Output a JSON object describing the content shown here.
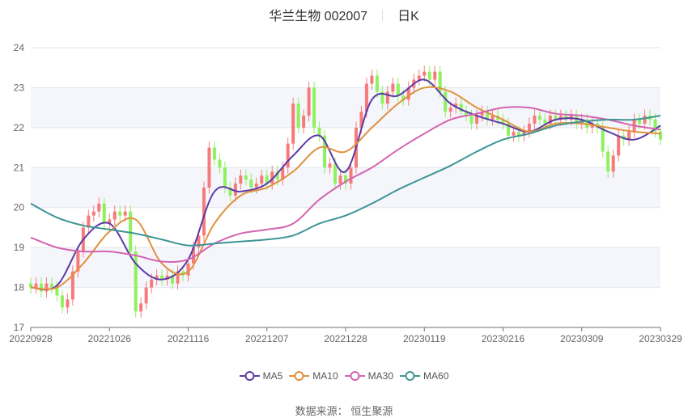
{
  "title": {
    "name": "华兰生物 002007",
    "period": "日K"
  },
  "source": {
    "label": "数据来源：",
    "value": "恒生聚源"
  },
  "colors": {
    "up": "#f77a7a",
    "down": "#8df25e",
    "MA5": "#5b3ba6",
    "MA10": "#e0913f",
    "MA30": "#d464b0",
    "MA60": "#3f9494",
    "band": "#f4f6fb",
    "grid": "#e3e6ee"
  },
  "chart_data": {
    "type": "candlestick",
    "ylim": [
      17,
      24
    ],
    "yticks": [
      17,
      18,
      19,
      20,
      21,
      22,
      23,
      24
    ],
    "xticks": [
      {
        "label": "20220928",
        "day": 0
      },
      {
        "label": "20221026",
        "day": 15
      },
      {
        "label": "20221116",
        "day": 30
      },
      {
        "label": "20221207",
        "day": 45
      },
      {
        "label": "20221228",
        "day": 60
      },
      {
        "label": "20230119",
        "day": 75
      },
      {
        "label": "20230216",
        "day": 90
      },
      {
        "label": "20230309",
        "day": 105
      },
      {
        "label": "20230329",
        "day": 120
      }
    ],
    "open": [
      18.1,
      18.0,
      18.1,
      17.9,
      18.1,
      18.0,
      17.8,
      17.5,
      17.7,
      18.4,
      18.9,
      19.5,
      19.8,
      19.9,
      20.1,
      19.6,
      19.7,
      19.9,
      19.8,
      19.9,
      18.9,
      17.4,
      17.6,
      18.0,
      18.2,
      18.3,
      18.2,
      18.3,
      18.1,
      18.4,
      18.3,
      18.6,
      19.0,
      19.3,
      20.5,
      21.5,
      21.2,
      21.0,
      20.5,
      20.3,
      20.6,
      20.8,
      20.7,
      20.5,
      20.6,
      20.8,
      20.6,
      20.9,
      20.7,
      21.0,
      21.6,
      22.6,
      22.0,
      22.3,
      23.0,
      22.0,
      21.8,
      21.0,
      21.1,
      20.6,
      20.8,
      20.6,
      21.0,
      22.0,
      22.4,
      23.1,
      23.3,
      22.9,
      22.6,
      22.9,
      23.1,
      22.8,
      22.7,
      23.0,
      23.2,
      23.3,
      23.4,
      23.2,
      23.4,
      22.9,
      22.4,
      22.5,
      22.6,
      22.4,
      22.3,
      22.1,
      22.3,
      22.4,
      22.2,
      22.3,
      22.2,
      22.1,
      21.8,
      21.9,
      21.8,
      21.9,
      22.1,
      22.3,
      22.2,
      22.1,
      22.3,
      22.2,
      22.3,
      22.2,
      22.3,
      22.1,
      22.2,
      22.0,
      22.1,
      22.0,
      21.4,
      20.9,
      21.3,
      21.8,
      21.7,
      21.9,
      22.2,
      22.1,
      22.3,
      22.2,
      21.9
    ],
    "close": [
      18.0,
      18.1,
      17.9,
      18.1,
      18.0,
      17.8,
      17.5,
      17.7,
      18.4,
      18.9,
      19.5,
      19.8,
      19.9,
      20.1,
      19.6,
      19.7,
      19.9,
      19.8,
      19.9,
      18.9,
      17.4,
      17.6,
      18.0,
      18.2,
      18.3,
      18.2,
      18.3,
      18.1,
      18.4,
      18.3,
      18.6,
      19.0,
      19.3,
      20.5,
      21.5,
      21.2,
      21.0,
      20.5,
      20.3,
      20.6,
      20.8,
      20.7,
      20.5,
      20.6,
      20.8,
      20.6,
      20.9,
      20.7,
      21.0,
      21.6,
      22.6,
      22.0,
      22.3,
      23.0,
      22.0,
      21.8,
      21.0,
      21.1,
      20.6,
      20.8,
      20.6,
      21.0,
      22.0,
      22.4,
      23.1,
      23.3,
      22.9,
      22.6,
      22.9,
      23.1,
      22.8,
      22.7,
      23.0,
      23.2,
      23.3,
      23.4,
      23.2,
      23.4,
      22.9,
      22.4,
      22.5,
      22.6,
      22.4,
      22.3,
      22.1,
      22.3,
      22.4,
      22.2,
      22.3,
      22.2,
      22.1,
      21.8,
      21.9,
      21.8,
      21.9,
      22.1,
      22.3,
      22.2,
      22.1,
      22.3,
      22.2,
      22.3,
      22.2,
      22.3,
      22.1,
      22.2,
      22.0,
      22.1,
      22.0,
      21.4,
      20.9,
      21.3,
      21.8,
      21.7,
      21.9,
      22.2,
      22.1,
      22.3,
      22.2,
      21.9,
      21.7
    ],
    "ma_sample_step_days": 5,
    "series": [
      {
        "name": "MA5",
        "values": [
          18.0,
          18.05,
          19.2,
          19.6,
          18.6,
          18.2,
          18.7,
          20.4,
          20.4,
          20.6,
          21.3,
          21.8,
          20.9,
          22.7,
          22.8,
          23.2,
          22.6,
          22.3,
          22.1,
          21.9,
          22.2,
          22.2,
          21.9,
          21.7,
          22.05
        ]
      },
      {
        "name": "MA10",
        "values": [
          18.0,
          18.0,
          18.6,
          19.4,
          19.7,
          18.6,
          18.4,
          19.6,
          20.3,
          20.5,
          20.9,
          21.5,
          21.4,
          22.0,
          22.6,
          23.0,
          22.9,
          22.5,
          22.2,
          21.9,
          22.1,
          22.1,
          22.0,
          21.9,
          21.85
        ]
      },
      {
        "name": "MA30",
        "values": [
          19.25,
          19.0,
          18.9,
          18.9,
          18.8,
          18.65,
          18.7,
          19.1,
          19.35,
          19.45,
          19.6,
          20.2,
          20.65,
          21.0,
          21.45,
          21.85,
          22.2,
          22.35,
          22.5,
          22.5,
          22.35,
          22.3,
          22.2,
          22.05,
          21.95
        ]
      },
      {
        "name": "MA60",
        "values": [
          20.1,
          19.75,
          19.55,
          19.45,
          19.35,
          19.2,
          19.05,
          19.1,
          19.15,
          19.2,
          19.3,
          19.6,
          19.8,
          20.1,
          20.45,
          20.75,
          21.05,
          21.4,
          21.7,
          21.85,
          22.05,
          22.15,
          22.2,
          22.2,
          22.3
        ]
      }
    ],
    "legend_placement": "bottom",
    "grid": true
  }
}
